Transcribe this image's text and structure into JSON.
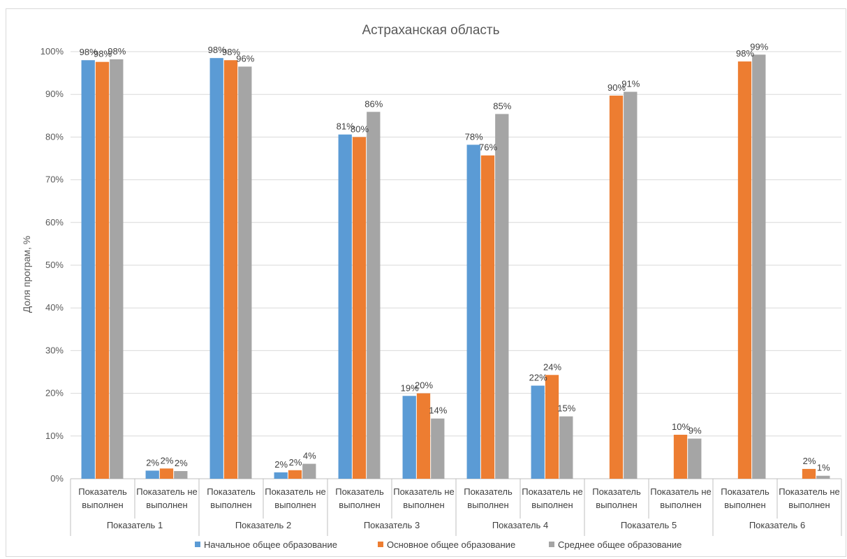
{
  "chart_data": {
    "type": "bar",
    "title": "Астраханская область",
    "ylabel": "Доля програм, %",
    "xlabel": "",
    "ylim": [
      0,
      100
    ],
    "yticks": [
      "0%",
      "10%",
      "20%",
      "30%",
      "40%",
      "50%",
      "60%",
      "70%",
      "80%",
      "90%",
      "100%"
    ],
    "grid": true,
    "legend_position": "bottom",
    "groups": [
      "Показатель 1",
      "Показатель 2",
      "Показатель 3",
      "Показатель 4",
      "Показатель 5",
      "Показатель 6"
    ],
    "subcategories": [
      [
        "Показатель",
        "выполнен"
      ],
      [
        "Показатель не",
        "выполнен"
      ]
    ],
    "categories": [
      "Показатель 1 / Показатель выполнен",
      "Показатель 1 / Показатель не выполнен",
      "Показатель 2 / Показатель выполнен",
      "Показатель 2 / Показатель не выполнен",
      "Показатель 3 / Показатель выполнен",
      "Показатель 3 / Показатель не выполнен",
      "Показатель 4 / Показатель выполнен",
      "Показатель 4 / Показатель не выполнен",
      "Показатель 5 / Показатель выполнен",
      "Показатель 5 / Показатель не выполнен",
      "Показатель 6 / Показатель выполнен",
      "Показатель 6 / Показатель не выполнен"
    ],
    "series": [
      {
        "name": "Начальное общее образование",
        "color": "#5b9bd5",
        "values": [
          98,
          1.9,
          98.5,
          1.5,
          80.6,
          19.4,
          78.2,
          21.8,
          null,
          null,
          null,
          null
        ],
        "labels": [
          "98%",
          "2%",
          "98%",
          "2%",
          "81%",
          "19%",
          "78%",
          "22%",
          "",
          "",
          "",
          ""
        ]
      },
      {
        "name": "Основное общее образование",
        "color": "#ed7d31",
        "values": [
          97.6,
          2.4,
          98.0,
          2.0,
          80.0,
          20.0,
          75.7,
          24.3,
          89.7,
          10.3,
          97.7,
          2.3
        ],
        "labels": [
          "98%",
          "2%",
          "98%",
          "2%",
          "80%",
          "20%",
          "76%",
          "24%",
          "90%",
          "10%",
          "98%",
          "2%"
        ]
      },
      {
        "name": "Среднее общее образование",
        "color": "#a5a5a5",
        "values": [
          98.2,
          1.8,
          96.5,
          3.5,
          85.9,
          14.1,
          85.4,
          14.6,
          90.6,
          9.4,
          99.3,
          0.7
        ],
        "labels": [
          "98%",
          "2%",
          "96%",
          "4%",
          "86%",
          "14%",
          "85%",
          "15%",
          "91%",
          "9%",
          "99%",
          "1%"
        ]
      }
    ]
  }
}
